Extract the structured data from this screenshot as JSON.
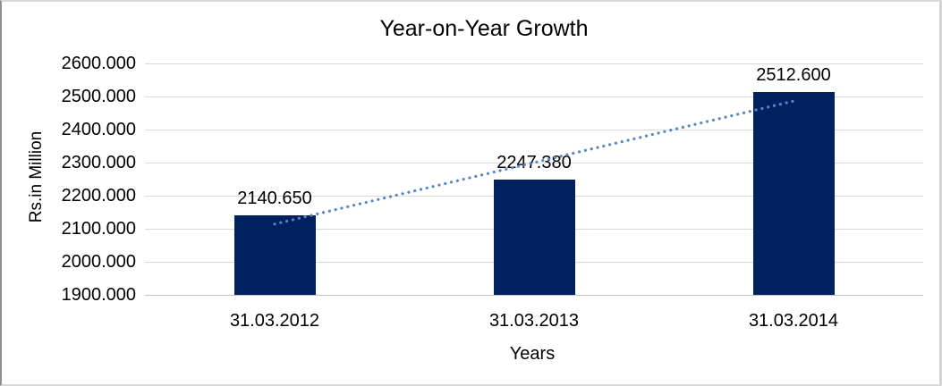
{
  "chart_data": {
    "type": "bar",
    "title": "Year-on-Year Growth",
    "xlabel": "Years",
    "ylabel": "Rs.in Million",
    "categories": [
      "31.03.2012",
      "31.03.2013",
      "31.03.2014"
    ],
    "values": [
      2140.65,
      2247.38,
      2512.6
    ],
    "data_labels": [
      "2140.650",
      "2247.380",
      "2512.600"
    ],
    "ylim": [
      1900,
      2600
    ],
    "ytick_step": 100,
    "ytick_labels": [
      "2600.000",
      "2500.000",
      "2400.000",
      "2300.000",
      "2200.000",
      "2100.000",
      "2000.000",
      "1900.000"
    ],
    "grid": true,
    "legend": "none",
    "bar_color": "#002060",
    "gridline_color": "#d9d9d9",
    "trendline": {
      "type": "linear",
      "style": "dotted",
      "color": "#5587c8",
      "endpoint_values": [
        2114.2,
        2486.2
      ]
    }
  }
}
